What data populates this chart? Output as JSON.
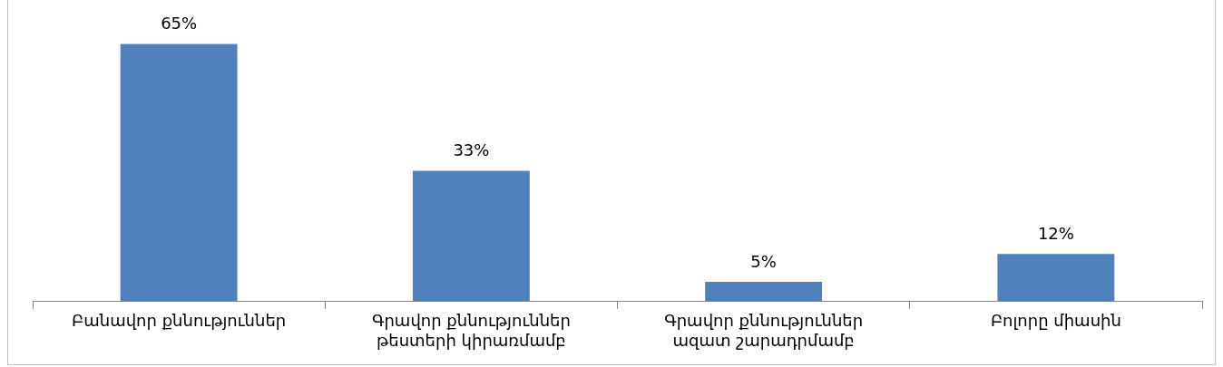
{
  "chart_data": {
    "type": "bar",
    "categories": [
      "Բանավոր քննություններ",
      "Գրավոր քննություններ թեստերի կիրառմամբ",
      "Գրավոր քննություններ ազատ շարադրմամբ",
      "Բոլորը միասին"
    ],
    "values": [
      65,
      33,
      5,
      12
    ],
    "value_labels": [
      "65%",
      "33%",
      "5%",
      "12%"
    ],
    "color": "#4f81bd",
    "grid": false,
    "legend": false
  }
}
